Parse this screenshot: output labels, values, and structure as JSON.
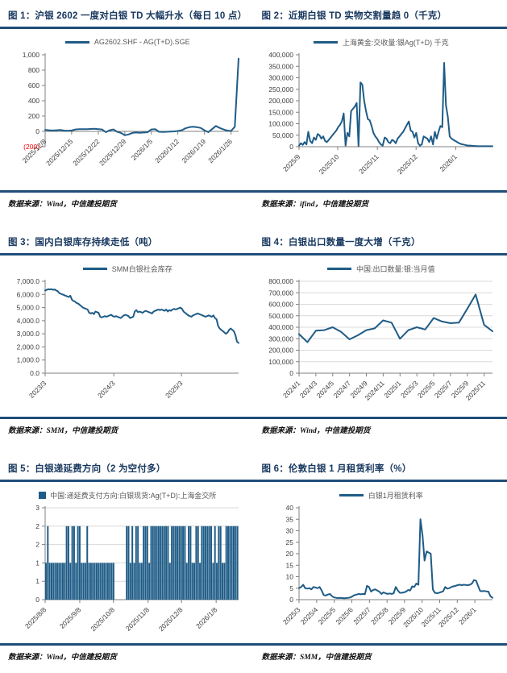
{
  "styles": {
    "accent_rule": "#1F4E79",
    "series_color": "#1F5C87",
    "grid_color": "#D9D9D9",
    "axis_color": "#808080",
    "tick_text_color": "#404040",
    "negative_tick_color": "#FF0000",
    "title_color": "#17375E",
    "legend_text_color": "#595959"
  },
  "chart_data": [
    {
      "figure": "图1",
      "title": "图 1：沪银 2602 一度对白银 TD 大幅升水（每日 10 点）",
      "type": "line",
      "legend": "AG2602.SHF - AG(T+D).SGE",
      "legend_marker": "line",
      "source": "数据来源：Wind，中信建投期货",
      "grid": false,
      "ymin": -200,
      "ymax": 1000,
      "ytick_vals": [
        -200,
        0,
        200,
        400,
        600,
        800,
        1000
      ],
      "ytick_labels": [
        "(200)",
        "0",
        "200",
        "400",
        "600",
        "800",
        "1,000"
      ],
      "red_negative_labels": true,
      "xtick_labels": [
        "2025/12/8",
        "2025/12/15",
        "2025/12/22",
        "2025/12/29",
        "2026/1/5",
        "2026/1/12",
        "2026/1/19",
        "2026/1/26"
      ],
      "xtick_pos": [
        0,
        0.137,
        0.275,
        0.412,
        0.549,
        0.686,
        0.824,
        0.961
      ],
      "values": [
        20,
        15,
        12,
        15,
        18,
        10,
        8,
        12,
        25,
        30,
        28,
        30,
        32,
        35,
        30,
        25,
        -10,
        15,
        25,
        -5,
        -20,
        -50,
        -40,
        -20,
        -15,
        -18,
        -15,
        -12,
        25,
        30,
        -5,
        -8,
        -5,
        -3,
        0,
        5,
        15,
        40,
        55,
        60,
        55,
        45,
        15,
        -10,
        30,
        70,
        45,
        25,
        10,
        5,
        60,
        950
      ]
    },
    {
      "figure": "图2",
      "title": "图 2：近期白银 TD 实物交割量趋 0（千克）",
      "type": "line",
      "legend": "上海黄金:交收量:银Ag(T+D) 千克",
      "legend_marker": "line",
      "source": "数据来源：ifind，中信建投期货",
      "grid": false,
      "ymin": 0,
      "ymax": 400000,
      "ytick_vals": [
        0,
        50000,
        100000,
        150000,
        200000,
        250000,
        300000,
        350000,
        400000
      ],
      "ytick_labels": [
        "0",
        "50,000",
        "100,000",
        "150,000",
        "200,000",
        "250,000",
        "300,000",
        "350,000",
        "400,000"
      ],
      "xtick_labels": [
        "2025/9",
        "2025/10",
        "2025/11",
        "2025/12",
        "2026/1"
      ],
      "xtick_pos": [
        0.0,
        0.2,
        0.405,
        0.605,
        0.81
      ],
      "values": [
        5000,
        15000,
        8000,
        20000,
        10000,
        65000,
        25000,
        15000,
        40000,
        30000,
        55000,
        50000,
        35000,
        45000,
        25000,
        20000,
        30000,
        40000,
        50000,
        60000,
        70000,
        85000,
        95000,
        110000,
        145000,
        5000,
        60000,
        45000,
        155000,
        165000,
        175000,
        190000,
        2000,
        280000,
        270000,
        200000,
        155000,
        120000,
        115000,
        90000,
        60000,
        45000,
        35000,
        20000,
        10000,
        5000,
        40000,
        35000,
        20000,
        15000,
        30000,
        25000,
        15000,
        35000,
        45000,
        55000,
        65000,
        80000,
        95000,
        110000,
        70000,
        65000,
        40000,
        60000,
        15000,
        5000,
        10000,
        45000,
        40000,
        35000,
        20000,
        45000,
        10000,
        65000,
        35000,
        65000,
        90000,
        85000,
        365000,
        180000,
        130000,
        45000,
        35000,
        30000,
        25000,
        20000,
        15000,
        12000,
        10000,
        8000,
        6000,
        5000,
        5000,
        4000,
        3000,
        3000,
        2000,
        2000,
        2000,
        2000,
        2000,
        2000,
        2000,
        2000,
        2000
      ]
    },
    {
      "figure": "图3",
      "title": "图 3：国内白银库存持续走低（吨）",
      "type": "line",
      "legend": "SMM白银社会库存",
      "legend_marker": "line",
      "source": "数据来源：SMM，中信建投期货",
      "grid": false,
      "ymin": 0,
      "ymax": 7000,
      "ytick_vals": [
        0,
        1000,
        2000,
        3000,
        4000,
        5000,
        6000,
        7000
      ],
      "ytick_labels": [
        "0.0",
        "1,000.0",
        "2,000.0",
        "3,000.0",
        "4,000.0",
        "5,000.0",
        "6,000.0",
        "7,000.0"
      ],
      "xtick_labels": [
        "2023/3",
        "2024/3",
        "2025/3"
      ],
      "xtick_pos": [
        0,
        0.355,
        0.705
      ],
      "values": [
        6300,
        6350,
        6400,
        6380,
        6400,
        6350,
        6380,
        6300,
        6250,
        6100,
        6050,
        6000,
        5950,
        5900,
        5850,
        5800,
        5900,
        5600,
        5500,
        5450,
        5350,
        5300,
        5200,
        5100,
        5000,
        4950,
        4900,
        4850,
        4600,
        4550,
        4600,
        4500,
        4700,
        4650,
        4600,
        4300,
        4250,
        4300,
        4350,
        4300,
        4350,
        4400,
        4450,
        4350,
        4300,
        4350,
        4300,
        4250,
        4200,
        4300,
        4400,
        4450,
        4400,
        4350,
        4200,
        4250,
        4300,
        4700,
        4800,
        4650,
        4700,
        4650,
        4600,
        4700,
        4750,
        4700,
        4650,
        4600,
        4550,
        4700,
        4750,
        4800,
        4850,
        4800,
        4850,
        4800,
        4750,
        4850,
        4700,
        4800,
        4750,
        4850,
        4900,
        4850,
        4900,
        4950,
        5000,
        4900,
        4700,
        4600,
        4500,
        4400,
        4350,
        4300,
        4400,
        4450,
        4500,
        4550,
        4500,
        4450,
        4400,
        4350,
        4300,
        4350,
        4400,
        4350,
        4300,
        4400,
        4200,
        4100,
        3600,
        3400,
        3300,
        3200,
        3100,
        3000,
        3100,
        3300,
        3400,
        3300,
        3200,
        2900,
        2400,
        2300
      ]
    },
    {
      "figure": "图4",
      "title": "图 4：白银出口数量一度大增（千克）",
      "type": "line",
      "legend": "中国:出口数量:银:当月值",
      "legend_marker": "line",
      "source": "数据来源：Wind，中信建投期货",
      "grid": true,
      "ymin": 0,
      "ymax": 800000,
      "ytick_vals": [
        0,
        100000,
        200000,
        300000,
        400000,
        500000,
        600000,
        700000,
        800000
      ],
      "ytick_labels": [
        "0",
        "100,000",
        "200,000",
        "300,000",
        "400,000",
        "500,000",
        "600,000",
        "700,000",
        "800,000"
      ],
      "xtick_labels": [
        "2024/1",
        "2024/3",
        "2024/5",
        "2024/7",
        "2024/9",
        "2024/11",
        "2025/1",
        "2025/3",
        "2025/5",
        "2025/7",
        "2025/9",
        "2025/11"
      ],
      "xtick_pos": [
        0,
        0.087,
        0.174,
        0.261,
        0.348,
        0.435,
        0.522,
        0.609,
        0.696,
        0.783,
        0.87,
        0.957
      ],
      "values": [
        340000,
        270000,
        370000,
        375000,
        400000,
        360000,
        295000,
        330000,
        375000,
        390000,
        460000,
        440000,
        300000,
        375000,
        400000,
        380000,
        480000,
        450000,
        435000,
        440000,
        560000,
        685000,
        420000,
        365000
      ]
    },
    {
      "figure": "图5",
      "title": "图 5：白银递延费方向（2 为空付多）",
      "type": "bar",
      "legend": "中国:递延费支付方向:白银现货:Ag(T+D):上海金交所",
      "legend_marker": "square",
      "source": "数据来源：Wind，中信建投期货",
      "grid": true,
      "ymin": 0,
      "ymax": 2.5,
      "ytick_vals": [
        0,
        0.5,
        1,
        1.5,
        2,
        2.5
      ],
      "ytick_labels": [
        "0",
        "1",
        "1",
        "2",
        "2",
        "3"
      ],
      "xtick_labels": [
        "2025/8/8",
        "2025/9/8",
        "2025/10/8",
        "2025/11/8",
        "2025/12/8",
        "2026/1/8"
      ],
      "xtick_pos": [
        0,
        0.179,
        0.353,
        0.532,
        0.705,
        0.884
      ],
      "values": [
        1,
        2,
        1,
        1,
        1,
        1,
        1,
        1,
        1,
        1,
        1,
        2,
        2,
        1,
        2,
        2,
        1,
        2,
        2,
        1,
        1,
        1,
        2,
        1,
        1,
        1,
        1,
        1,
        1,
        1,
        1,
        1,
        1,
        1,
        1,
        1,
        1,
        0,
        0,
        0,
        0,
        0,
        0,
        2,
        2,
        1,
        2,
        1,
        2,
        2,
        1,
        1,
        2,
        2,
        2,
        1,
        2,
        2,
        2,
        2,
        2,
        2,
        2,
        2,
        2,
        2,
        1,
        2,
        2,
        2,
        2,
        2,
        2,
        2,
        2,
        1,
        2,
        2,
        1,
        1,
        2,
        2,
        1,
        2,
        2,
        2,
        2,
        2,
        2,
        1,
        2,
        1,
        2,
        2,
        1,
        1,
        2,
        2,
        2,
        2,
        2,
        2,
        2
      ]
    },
    {
      "figure": "图6",
      "title": "图 6：伦敦白银 1 月租赁利率（%）",
      "type": "line",
      "legend": "白银1月租赁利率",
      "legend_marker": "line",
      "source": "数据来源：SMM，中信建投期货",
      "grid": false,
      "ymin": 0,
      "ymax": 40,
      "ytick_vals": [
        0,
        5,
        10,
        15,
        20,
        25,
        30,
        35,
        40
      ],
      "ytick_labels": [
        "0",
        "5",
        "10",
        "15",
        "20",
        "25",
        "30",
        "35",
        "40"
      ],
      "xtick_labels": [
        "2025/3",
        "2025/4",
        "2025/5",
        "2025/6",
        "2025/7",
        "2025/8",
        "2025/9",
        "2025/10",
        "2025/11",
        "2025/12",
        "2026/1"
      ],
      "xtick_pos": [
        0,
        0.091,
        0.182,
        0.273,
        0.364,
        0.455,
        0.545,
        0.636,
        0.727,
        0.818,
        0.909
      ],
      "values": [
        5,
        5.5,
        6.5,
        5,
        4.8,
        5,
        4.5,
        5.5,
        5.3,
        5,
        5.5,
        4,
        2,
        1.8,
        2.2,
        2.5,
        1.5,
        1,
        0.8,
        0.7,
        0.8,
        0.7,
        0.6,
        0.7,
        0.8,
        1,
        1.5,
        2,
        2.2,
        2.5,
        2.3,
        2.5,
        2.4,
        6,
        5.5,
        3.5,
        4.2,
        4.5,
        4,
        3.5,
        2.5,
        3.2,
        2.8,
        2.5,
        2.7,
        2.5,
        2.8,
        5.5,
        4,
        3,
        3,
        3.2,
        3.5,
        4.2,
        4,
        5.8,
        5.5,
        7,
        6.5,
        35,
        28,
        17,
        21,
        20.5,
        20,
        4.5,
        3,
        2.8,
        3,
        3.3,
        3.6,
        5.5,
        4.8,
        5,
        5.5,
        5.8,
        6,
        6.3,
        6.5,
        6.3,
        6.5,
        6.4,
        6.3,
        6.5,
        7,
        8.5,
        8.3,
        6,
        3.8,
        3.7,
        3.8,
        3.6,
        3.5,
        1.5,
        0.8
      ]
    }
  ]
}
